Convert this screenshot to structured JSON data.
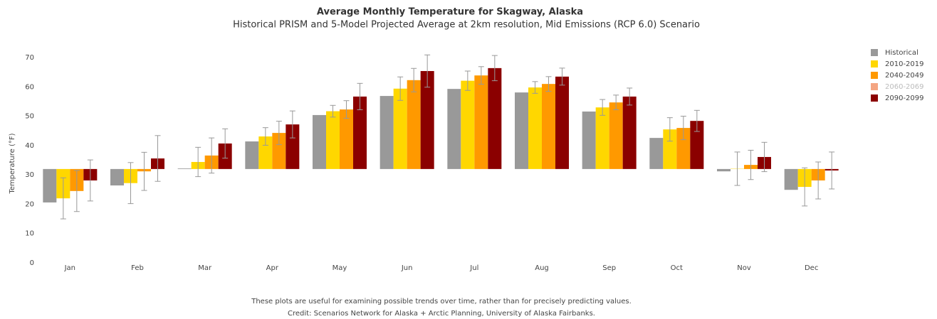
{
  "chart_data": {
    "type": "bar",
    "title": "Average Monthly Temperature for Skagway, Alaska",
    "subtitle": "Historical PRISM and 5-Model Projected Average at 2km resolution, Mid Emissions (RCP 6.0) Scenario",
    "y_label": "Temperature (°F)",
    "notes": [
      "These plots are useful for examining possible trends over time, rather than for precisely predicting values.",
      "Credit: Scenarios Network for Alaska + Arctic Planning, University of Alaska Fairbanks."
    ],
    "categories": [
      "Jan",
      "Feb",
      "Mar",
      "Apr",
      "May",
      "Jun",
      "Jul",
      "Aug",
      "Sep",
      "Oct",
      "Nov",
      "Dec"
    ],
    "bar_base": 32,
    "ylim": [
      0,
      70
    ],
    "yticks": [
      0,
      10,
      20,
      30,
      40,
      50,
      60,
      70
    ],
    "legend": "top-right",
    "series": [
      {
        "name": "Historical",
        "color": "#999999",
        "visible": true,
        "values": [
          20.6,
          26.4,
          32.2,
          41.4,
          50.4,
          56.9,
          59.3,
          58.1,
          51.6,
          42.6,
          31.2,
          24.9
        ]
      },
      {
        "name": "2010-2019",
        "color": "#ffd700",
        "visible": true,
        "values": [
          22,
          27.2,
          34.4,
          43.1,
          51.7,
          59.4,
          62.1,
          59.8,
          53,
          45.5,
          32.1,
          25.9
        ],
        "errors": [
          7,
          7,
          5,
          3,
          2,
          4,
          3.3,
          2,
          2.7,
          4,
          5.7,
          6.5
        ]
      },
      {
        "name": "2040-2049",
        "color": "#ff9900",
        "visible": true,
        "values": [
          24.5,
          31.2,
          36.6,
          44.3,
          52.3,
          62.3,
          63.9,
          61,
          54.7,
          46,
          33.4,
          28.1
        ],
        "errors": [
          7,
          6.5,
          6,
          4,
          3,
          4,
          3,
          2.5,
          2.5,
          4,
          5,
          6.3
        ]
      },
      {
        "name": "2060-2069",
        "color": "#f4a582",
        "visible": false,
        "values": [
          null,
          null,
          null,
          null,
          null,
          null,
          null,
          null,
          null,
          null,
          null,
          null
        ]
      },
      {
        "name": "2090-2099",
        "color": "#8b0000",
        "visible": true,
        "values": [
          28.1,
          35.6,
          40.7,
          47.2,
          56.7,
          65.4,
          66.4,
          63.5,
          56.7,
          48.4,
          36.1,
          31.5
        ],
        "errors": [
          7,
          7.8,
          5,
          4.6,
          4.5,
          5.5,
          4.3,
          2.9,
          2.9,
          3.6,
          5,
          6.3
        ]
      }
    ]
  }
}
